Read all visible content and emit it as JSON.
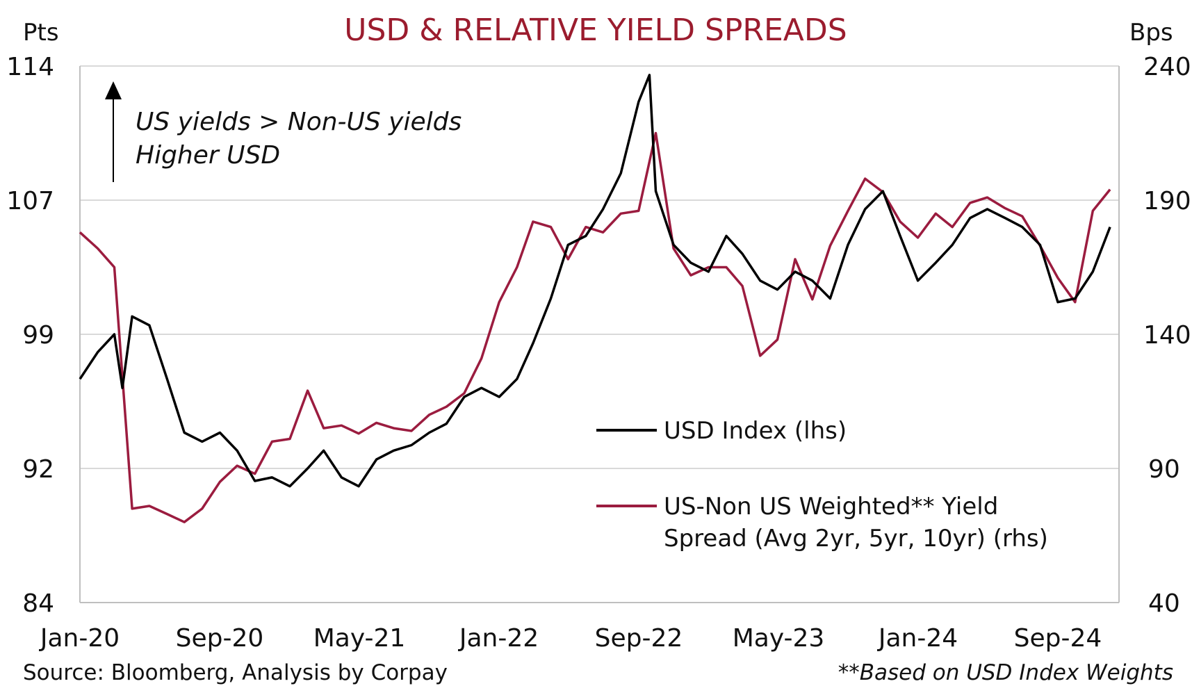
{
  "chart_data": {
    "type": "line",
    "title": "USD & RELATIVE YIELD SPREADS",
    "left_axis_unit": "Pts",
    "right_axis_unit": "Bps",
    "ylim_left": [
      84,
      114
    ],
    "ylim_right": [
      40,
      240
    ],
    "y_ticks_left": [
      "114",
      "107",
      "99",
      "92",
      "84"
    ],
    "y_ticks_right": [
      "240",
      "190",
      "140",
      "90",
      "40"
    ],
    "x_ticks": [
      "Jan-20",
      "Sep-20",
      "May-21",
      "Jan-22",
      "Sep-22",
      "May-23",
      "Jan-24",
      "Sep-24"
    ],
    "x_range": [
      "2020-01",
      "2024-12"
    ],
    "grid": "horizontal",
    "legend_position": "center-right",
    "annotation": [
      "US yields > Non-US yields",
      "Higher USD"
    ],
    "source": "Source: Bloomberg, Analysis by Corpay",
    "footnote": "**Based on USD Index Weights",
    "colors": {
      "usd": "#000000",
      "spread": "#9b1c3f",
      "title": "#9b1c2e"
    },
    "series": [
      {
        "name": "USD Index (lhs)",
        "axis": "left",
        "x": [
          "2020-01",
          "2020-02",
          "2020-03",
          "2020-03-15",
          "2020-04",
          "2020-05",
          "2020-06",
          "2020-07",
          "2020-08",
          "2020-09",
          "2020-10",
          "2020-11",
          "2020-12",
          "2021-01",
          "2021-02",
          "2021-03",
          "2021-04",
          "2021-05",
          "2021-06",
          "2021-07",
          "2021-08",
          "2021-09",
          "2021-10",
          "2021-11",
          "2021-12",
          "2022-01",
          "2022-02",
          "2022-03",
          "2022-04",
          "2022-05",
          "2022-06",
          "2022-07",
          "2022-08",
          "2022-09",
          "2022-09-20",
          "2022-10",
          "2022-11",
          "2022-12",
          "2023-01",
          "2023-02",
          "2023-03",
          "2023-04",
          "2023-05",
          "2023-06",
          "2023-07",
          "2023-08",
          "2023-09",
          "2023-10",
          "2023-11",
          "2023-12",
          "2024-01",
          "2024-02",
          "2024-03",
          "2024-04",
          "2024-05",
          "2024-06",
          "2024-07",
          "2024-08",
          "2024-09",
          "2024-10",
          "2024-11",
          "2024-12"
        ],
        "values": [
          96.5,
          98.0,
          99.0,
          96.0,
          100.0,
          99.5,
          96.5,
          93.5,
          93.0,
          93.5,
          92.5,
          90.8,
          91.0,
          90.5,
          91.5,
          92.5,
          91.0,
          90.5,
          92.0,
          92.5,
          92.8,
          93.5,
          94.0,
          95.5,
          96.0,
          95.5,
          96.5,
          98.5,
          101.0,
          104.0,
          104.5,
          106.0,
          108.0,
          112.0,
          113.5,
          107.0,
          104.0,
          103.0,
          102.5,
          104.5,
          103.5,
          102.0,
          101.5,
          102.5,
          102.0,
          101.0,
          104.0,
          106.0,
          107.0,
          104.5,
          102.0,
          103.0,
          104.0,
          105.5,
          106.0,
          105.5,
          105.0,
          104.0,
          100.8,
          101.0,
          102.5,
          105.0
        ]
      },
      {
        "name": "US-Non US Weighted** Yield Spread (Avg 2yr, 5yr, 10yr) (rhs)",
        "axis": "right",
        "x": [
          "2020-01",
          "2020-02",
          "2020-03",
          "2020-04",
          "2020-05",
          "2020-06",
          "2020-07",
          "2020-08",
          "2020-09",
          "2020-10",
          "2020-11",
          "2020-12",
          "2021-01",
          "2021-02",
          "2021-03",
          "2021-04",
          "2021-05",
          "2021-06",
          "2021-07",
          "2021-08",
          "2021-09",
          "2021-10",
          "2021-11",
          "2021-12",
          "2022-01",
          "2022-02",
          "2022-03",
          "2022-04",
          "2022-05",
          "2022-06",
          "2022-07",
          "2022-08",
          "2022-09",
          "2022-10",
          "2022-11",
          "2022-12",
          "2023-01",
          "2023-02",
          "2023-03",
          "2023-04",
          "2023-05",
          "2023-06",
          "2023-07",
          "2023-08",
          "2023-09",
          "2023-10",
          "2023-11",
          "2023-12",
          "2024-01",
          "2024-02",
          "2024-03",
          "2024-04",
          "2024-05",
          "2024-06",
          "2024-07",
          "2024-08",
          "2024-09",
          "2024-10",
          "2024-11",
          "2024-12"
        ],
        "values": [
          178,
          172,
          165,
          75,
          76,
          73,
          70,
          75,
          85,
          91,
          88,
          100,
          101,
          119,
          105,
          106,
          103,
          107,
          105,
          104,
          110,
          113,
          118,
          131,
          152,
          165,
          182,
          180,
          168,
          180,
          178,
          185,
          186,
          215,
          172,
          162,
          165,
          165,
          158,
          132,
          138,
          168,
          153,
          173,
          186,
          198,
          193,
          182,
          176,
          185,
          180,
          189,
          191,
          187,
          184,
          173,
          161,
          152,
          186,
          194
        ]
      }
    ]
  }
}
